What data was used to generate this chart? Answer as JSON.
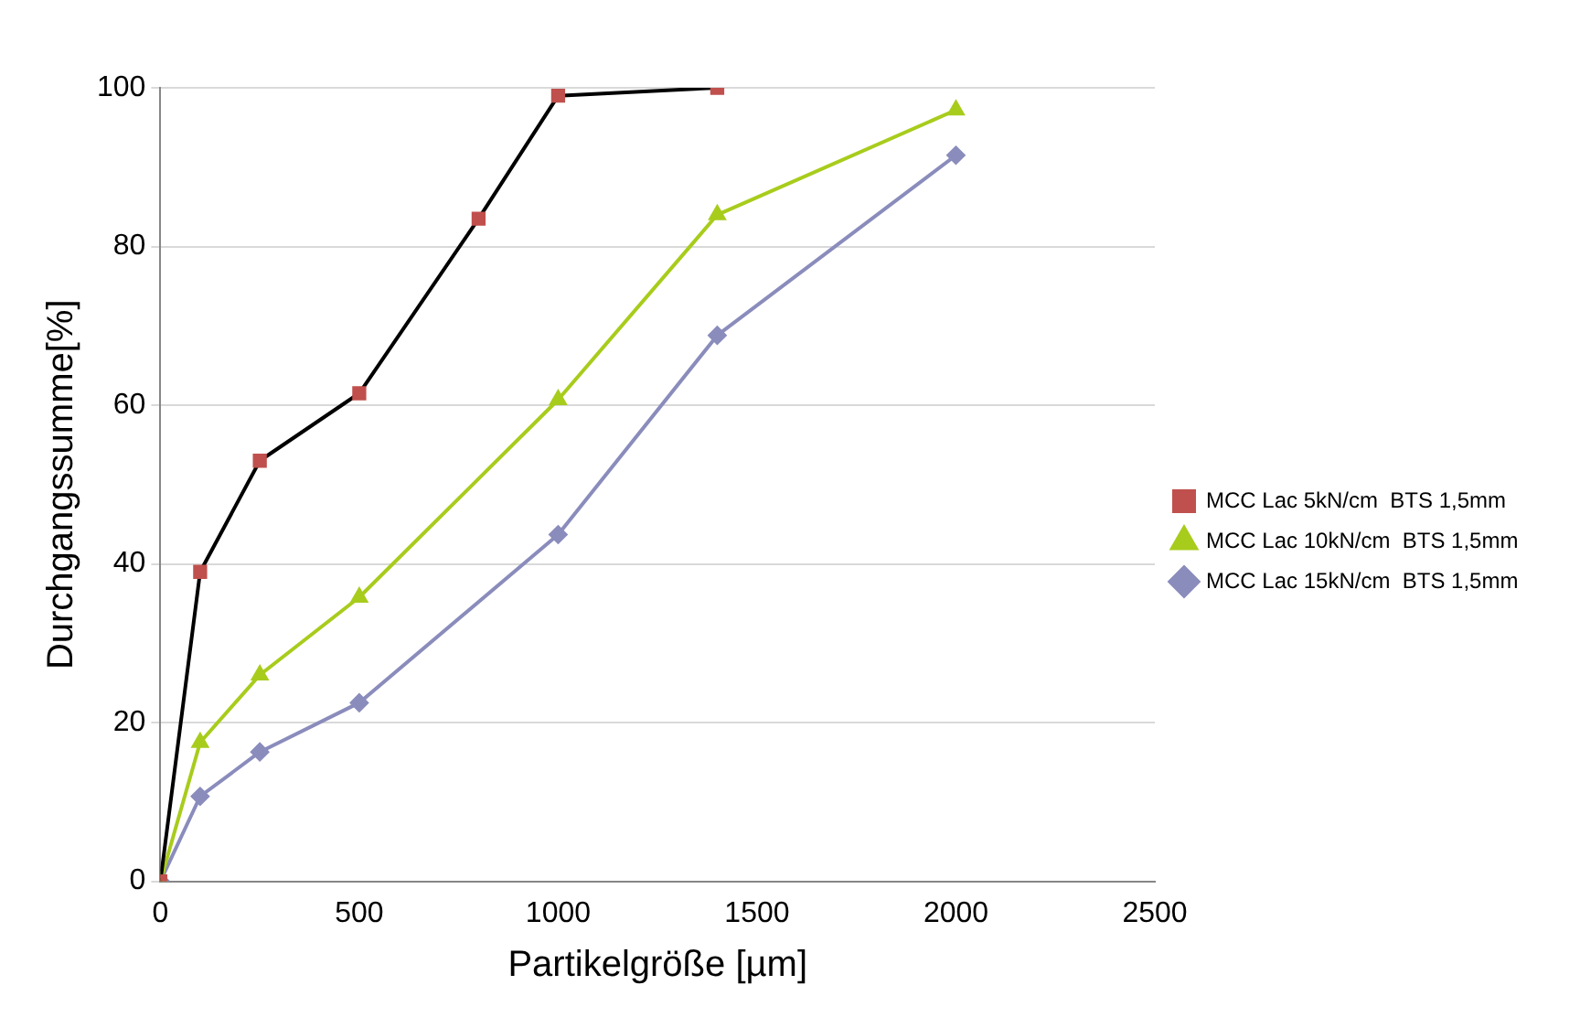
{
  "chart_data": {
    "type": "line",
    "xlabel": "Partikelgröße [µm]",
    "ylabel": "Durchgangssumme[%]",
    "xlim": [
      0,
      2500
    ],
    "xticks": [
      0,
      500,
      1000,
      1500,
      2000,
      2500
    ],
    "ylim": [
      0,
      100
    ],
    "yticks": [
      0,
      20,
      40,
      60,
      80,
      100
    ],
    "grid": "y",
    "legend": "right",
    "series": [
      {
        "name": "MCC Lac 5kN/cm  BTS 1,5mm",
        "color": "#000000",
        "colors": [
          "#c0504d",
          "#c0504d",
          "#c0504d",
          "#c0504d",
          "#c0504d",
          "#c0504d",
          "#c0504d"
        ],
        "marker": "square",
        "x": [
          0,
          100,
          250,
          500,
          800,
          1000,
          1400
        ],
        "values": [
          0,
          39,
          53,
          61.5,
          83.5,
          99,
          100
        ]
      },
      {
        "name": "MCC Lac 10kN/cm  BTS 1,5mm",
        "color": "#a8cc1c",
        "marker": "triangle",
        "x": [
          0,
          100,
          250,
          500,
          1000,
          1400,
          2000
        ],
        "values": [
          0,
          17.5,
          26,
          35.8,
          60.7,
          84,
          97.2
        ]
      },
      {
        "name": "MCC Lac 15kN/cm  BTS 1,5mm",
        "color": "#8a8cbc",
        "marker": "diamond",
        "x": [
          0,
          100,
          250,
          500,
          1000,
          1400,
          2000
        ],
        "values": [
          0,
          10.7,
          16.3,
          22.5,
          43.7,
          68.8,
          91.5
        ]
      }
    ]
  }
}
